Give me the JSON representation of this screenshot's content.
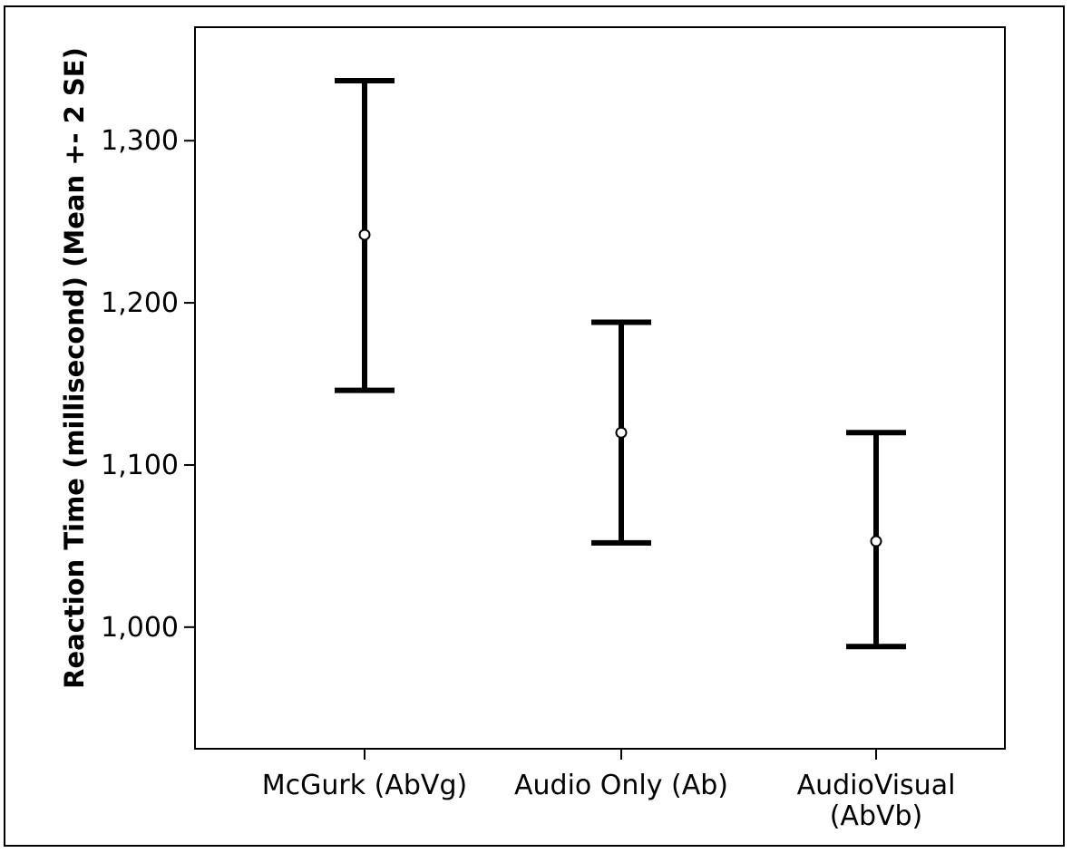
{
  "chart_data": {
    "type": "errorbar",
    "title": "",
    "xlabel": "",
    "ylabel": "Reaction Time (millisecond) (Mean +- 2 SE)",
    "categories": [
      [
        "McGurk (AbVg)"
      ],
      [
        "Audio Only (Ab)"
      ],
      [
        "AudioVisual",
        "(AbVb)"
      ]
    ],
    "series": [
      {
        "mean": [
          1242,
          1120,
          1053
        ],
        "lower": [
          1146,
          1052,
          988
        ],
        "upper": [
          1337,
          1188,
          1120
        ]
      }
    ],
    "yticks": [
      1000,
      1100,
      1200,
      1300
    ],
    "ytick_labels": [
      "1,000",
      "1,100",
      "1,200",
      "1,300"
    ],
    "ylim": [
      925,
      1370
    ],
    "grid": false,
    "legend": "none",
    "colors": {
      "bar": "#000000",
      "marker": "#000000"
    }
  }
}
